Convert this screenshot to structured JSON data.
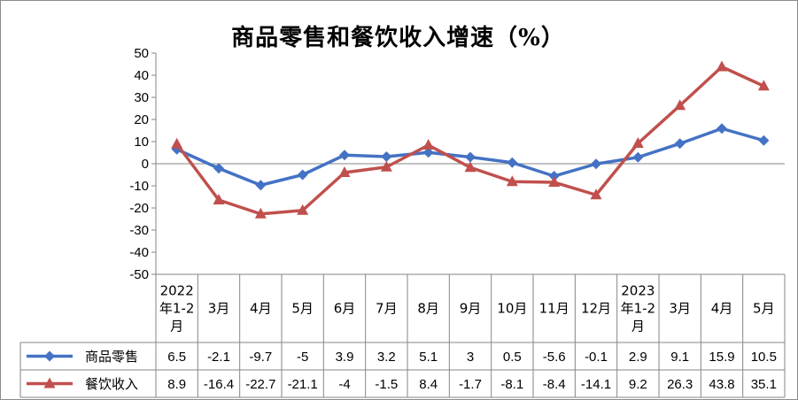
{
  "chart_data": {
    "type": "line",
    "title": "商品零售和餐饮收入增速（%）",
    "categories": [
      [
        "2022",
        "年1-2",
        "月"
      ],
      [
        "3月"
      ],
      [
        "4月"
      ],
      [
        "5月"
      ],
      [
        "6月"
      ],
      [
        "7月"
      ],
      [
        "8月"
      ],
      [
        "9月"
      ],
      [
        "10月"
      ],
      [
        "11月"
      ],
      [
        "12月"
      ],
      [
        "2023",
        "年1-2",
        "月"
      ],
      [
        "3月"
      ],
      [
        "4月"
      ],
      [
        "5月"
      ]
    ],
    "ylim": [
      -50,
      50
    ],
    "yticks": [
      50,
      40,
      30,
      20,
      10,
      0,
      -10,
      -20,
      -30,
      -40,
      -50
    ],
    "grid": false,
    "legend": "data-table",
    "series": [
      {
        "name": "商品零售",
        "color": "#4472c4",
        "marker": "diamond",
        "values": [
          6.5,
          -2.1,
          -9.7,
          -5,
          3.9,
          3.2,
          5.1,
          3,
          0.5,
          -5.6,
          -0.1,
          2.9,
          9.1,
          15.9,
          10.5
        ],
        "labels": [
          "6.5",
          "-2.1",
          "-9.7",
          "-5",
          "3.9",
          "3.2",
          "5.1",
          "3",
          "0.5",
          "-5.6",
          "-0.1",
          "2.9",
          "9.1",
          "15.9",
          "10.5"
        ]
      },
      {
        "name": "餐饮收入",
        "color": "#c0504d",
        "marker": "triangle",
        "values": [
          8.9,
          -16.4,
          -22.7,
          -21.1,
          -4,
          -1.5,
          8.4,
          -1.7,
          -8.1,
          -8.4,
          -14.1,
          9.2,
          26.3,
          43.8,
          35.1
        ],
        "labels": [
          "8.9",
          "-16.4",
          "-22.7",
          "-21.1",
          "-4",
          "-1.5",
          "8.4",
          "-1.7",
          "-8.1",
          "-8.4",
          "-14.1",
          "9.2",
          "26.3",
          "43.8",
          "35.1"
        ]
      }
    ]
  }
}
